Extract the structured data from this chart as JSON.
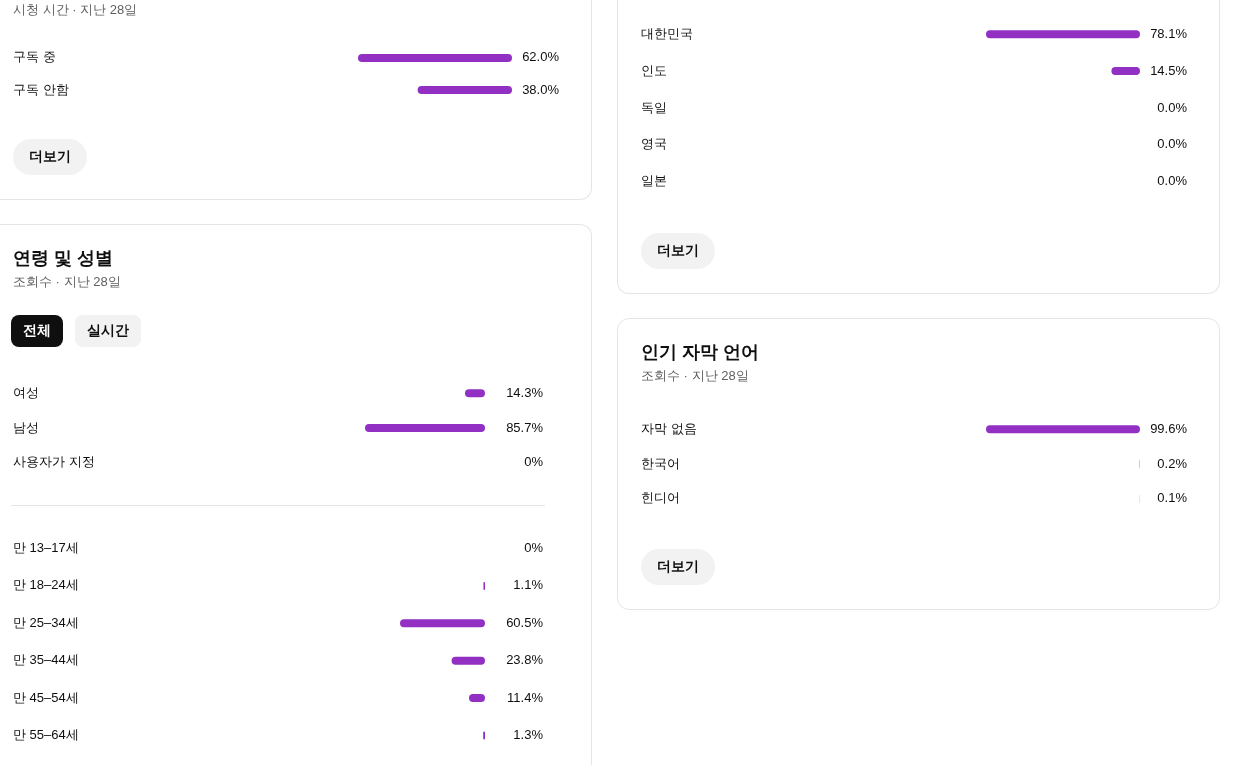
{
  "chart_data": [
    {
      "type": "bar",
      "orientation": "horizontal",
      "subtitle": "시청 시간 · 지난 28일",
      "categories": [
        "구독 중",
        "구독 안함"
      ],
      "values": [
        62.0,
        38.0
      ],
      "value_labels": [
        "62.0%",
        "38.0%"
      ],
      "color": "#9130c2",
      "tick_labels": "y",
      "annotations": [
        "더보기"
      ]
    },
    {
      "type": "bar",
      "orientation": "horizontal",
      "categories": [
        "대한민국",
        "인도",
        "독일",
        "영국",
        "일본"
      ],
      "values": [
        78.1,
        14.5,
        0.0,
        0.0,
        0.0
      ],
      "value_labels": [
        "78.1%",
        "14.5%",
        "0.0%",
        "0.0%",
        "0.0%"
      ],
      "color": "#9130c2",
      "tick_labels": "y",
      "annotations": [
        "더보기"
      ]
    },
    {
      "type": "bar",
      "orientation": "horizontal",
      "title": "연령 및 성별",
      "subtitle": "조회수 · 지난 28일",
      "categories": [
        "여성",
        "남성",
        "사용자가 지정"
      ],
      "values": [
        14.3,
        85.7,
        0
      ],
      "value_labels": [
        "14.3%",
        "85.7%",
        "0%"
      ],
      "color": "#9130c2",
      "tick_labels": "y",
      "annotations": [
        "전체",
        "실시간"
      ]
    },
    {
      "type": "bar",
      "orientation": "horizontal",
      "categories": [
        "만 13–17세",
        "만 18–24세",
        "만 25–34세",
        "만 35–44세",
        "만 45–54세",
        "만 55–64세"
      ],
      "values": [
        0,
        1.1,
        60.5,
        23.8,
        11.4,
        1.3
      ],
      "value_labels": [
        "0%",
        "1.1%",
        "60.5%",
        "23.8%",
        "11.4%",
        "1.3%"
      ],
      "color": "#9130c2",
      "tick_labels": "y"
    },
    {
      "type": "bar",
      "orientation": "horizontal",
      "title": "인기 자막 언어",
      "subtitle": "조회수 · 지난 28일",
      "categories": [
        "자막 없음",
        "한국어",
        "힌디어"
      ],
      "values": [
        99.6,
        0.2,
        0.1
      ],
      "value_labels": [
        "99.6%",
        "0.2%",
        "0.1%"
      ],
      "color": "#9130c2",
      "tick_labels": "y",
      "annotations": [
        "더보기"
      ]
    }
  ]
}
